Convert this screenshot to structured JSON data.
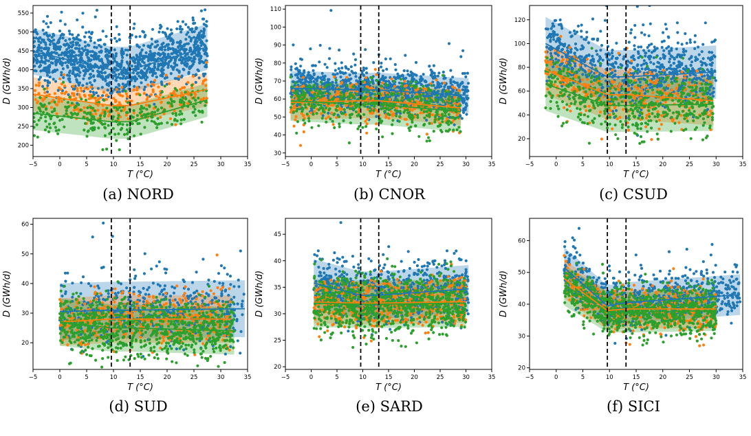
{
  "figure": {
    "colors": {
      "series_a": "#1f77b4",
      "series_b": "#ff7f0e",
      "series_c": "#2ca02c",
      "threshold": "#000000"
    },
    "captions": [
      "(a) NORD",
      "(b) CNOR",
      "(c) CSUD",
      "(d) SUD",
      "(e) SARD",
      "(f) SICI"
    ]
  },
  "chart_data": [
    {
      "type": "scatter",
      "caption": "(a) NORD",
      "xlabel": "T (°C)",
      "ylabel": "D (GWh/d)",
      "xlim": [
        -5,
        35
      ],
      "ylim": [
        170,
        570
      ],
      "xticks": [
        -5,
        0,
        5,
        10,
        15,
        20,
        25,
        30,
        35
      ],
      "yticks": [
        200,
        250,
        300,
        350,
        400,
        450,
        500,
        550
      ],
      "thresholds": [
        9.6,
        13.1
      ],
      "x_range": [
        -5,
        27.5
      ],
      "series": [
        {
          "color_key": "series_a",
          "n": 1200,
          "line": [
            [
              -5,
              448
            ],
            [
              9.6,
              400
            ],
            [
              13.1,
              400
            ],
            [
              27.5,
              460
            ]
          ],
          "spread": 38
        },
        {
          "color_key": "series_b",
          "n": 260,
          "line": [
            [
              -5,
              335
            ],
            [
              9.6,
              305
            ],
            [
              13.1,
              305
            ],
            [
              27.5,
              348
            ]
          ],
          "spread": 28
        },
        {
          "color_key": "series_c",
          "n": 300,
          "line": [
            [
              -5,
              285
            ],
            [
              9.6,
              262
            ],
            [
              13.1,
              262
            ],
            [
              27.5,
              320
            ]
          ],
          "spread": 28
        }
      ]
    },
    {
      "type": "scatter",
      "caption": "(b) CNOR",
      "xlabel": "T (°C)",
      "ylabel": "D (GWh/d)",
      "xlim": [
        -5,
        35
      ],
      "ylim": [
        28,
        112
      ],
      "xticks": [
        -5,
        0,
        5,
        10,
        15,
        20,
        25,
        30,
        35
      ],
      "yticks": [
        30,
        40,
        50,
        60,
        70,
        80,
        90,
        100,
        110
      ],
      "thresholds": [
        9.6,
        13.1
      ],
      "x_range": [
        -4,
        30.5
      ],
      "series": [
        {
          "color_key": "series_a",
          "n": 1000,
          "line": [
            [
              -4,
              66
            ],
            [
              9.6,
              65
            ],
            [
              13.1,
              65
            ],
            [
              30.5,
              62
            ]
          ],
          "spread": 6
        },
        {
          "color_key": "series_b",
          "n": 350,
          "line": [
            [
              -4,
              58
            ],
            [
              9.6,
              59
            ],
            [
              13.1,
              59
            ],
            [
              29,
              55
            ]
          ],
          "spread": 6
        },
        {
          "color_key": "series_c",
          "n": 450,
          "line": [
            [
              -4,
              59
            ],
            [
              9.6,
              57
            ],
            [
              13.1,
              57
            ],
            [
              29,
              53
            ]
          ],
          "spread": 7
        }
      ]
    },
    {
      "type": "scatter",
      "caption": "(c) CSUD",
      "xlabel": "T (°C)",
      "ylabel": "D (GWh/d)",
      "xlim": [
        -5,
        35
      ],
      "ylim": [
        5,
        132
      ],
      "xticks": [
        -5,
        0,
        5,
        10,
        15,
        20,
        25,
        30,
        35
      ],
      "yticks": [
        20,
        40,
        60,
        80,
        100,
        120
      ],
      "thresholds": [
        9.6,
        13.1
      ],
      "x_range": [
        -2,
        30
      ],
      "series": [
        {
          "color_key": "series_a",
          "n": 800,
          "line": [
            [
              -2,
              100
            ],
            [
              9.6,
              72
            ],
            [
              13.1,
              72
            ],
            [
              30,
              76
            ]
          ],
          "spread": 14
        },
        {
          "color_key": "series_b",
          "n": 350,
          "line": [
            [
              -2,
              78
            ],
            [
              9.6,
              57
            ],
            [
              13.1,
              57
            ],
            [
              29.5,
              52
            ]
          ],
          "spread": 13
        },
        {
          "color_key": "series_c",
          "n": 500,
          "line": [
            [
              -2,
              66
            ],
            [
              9.6,
              48
            ],
            [
              13.1,
              48
            ],
            [
              29.5,
              49
            ]
          ],
          "spread": 14
        }
      ]
    },
    {
      "type": "scatter",
      "caption": "(d) SUD",
      "xlabel": "T (°C)",
      "ylabel": "D (GWh/d)",
      "xlim": [
        -5,
        35
      ],
      "ylim": [
        11,
        62
      ],
      "xticks": [
        -5,
        0,
        5,
        10,
        15,
        20,
        25,
        30,
        35
      ],
      "yticks": [
        20,
        30,
        40,
        50,
        60
      ],
      "thresholds": [
        9.6,
        13.1
      ],
      "x_range": [
        0,
        34.5
      ],
      "series": [
        {
          "color_key": "series_a",
          "n": 500,
          "line": [
            [
              0,
              30.5
            ],
            [
              9.6,
              31
            ],
            [
              13.1,
              31
            ],
            [
              34.5,
              31.5
            ]
          ],
          "spread": 6
        },
        {
          "color_key": "series_b",
          "n": 400,
          "line": [
            [
              0,
              27
            ],
            [
              9.6,
              28
            ],
            [
              13.1,
              28
            ],
            [
              32,
              28
            ]
          ],
          "spread": 5
        },
        {
          "color_key": "series_c",
          "n": 800,
          "line": [
            [
              0,
              27
            ],
            [
              9.6,
              25
            ],
            [
              13.1,
              25
            ],
            [
              32.5,
              24
            ]
          ],
          "spread": 5
        }
      ]
    },
    {
      "type": "scatter",
      "caption": "(e) SARD",
      "xlabel": "T (°C)",
      "ylabel": "D (GWh/d)",
      "xlim": [
        -5,
        35
      ],
      "ylim": [
        19.5,
        48
      ],
      "xticks": [
        -5,
        0,
        5,
        10,
        15,
        20,
        25,
        30,
        35
      ],
      "yticks": [
        20,
        25,
        30,
        35,
        40,
        45
      ],
      "thresholds": [
        9.6,
        13.1
      ],
      "x_range": [
        0.5,
        30.5
      ],
      "series": [
        {
          "color_key": "series_a",
          "n": 700,
          "line": [
            [
              0.5,
              35.8
            ],
            [
              9.6,
              33.5
            ],
            [
              13.1,
              33.5
            ],
            [
              30.5,
              34.7
            ]
          ],
          "spread": 2.8
        },
        {
          "color_key": "series_b",
          "n": 500,
          "line": [
            [
              0.5,
              32.2
            ],
            [
              9.6,
              32
            ],
            [
              13.1,
              32
            ],
            [
              30,
              32.3
            ]
          ],
          "spread": 2.5
        },
        {
          "color_key": "series_c",
          "n": 800,
          "line": [
            [
              0.5,
              32
            ],
            [
              9.6,
              31.8
            ],
            [
              13.1,
              31.8
            ],
            [
              30,
              32
            ]
          ],
          "spread": 2.8
        }
      ]
    },
    {
      "type": "scatter",
      "caption": "(f) SICI",
      "xlabel": "T (°C)",
      "ylabel": "D (GWh/d)",
      "xlim": [
        -5,
        35
      ],
      "ylim": [
        19.5,
        67
      ],
      "xticks": [
        -5,
        0,
        5,
        10,
        15,
        20,
        25,
        30,
        35
      ],
      "yticks": [
        20,
        30,
        40,
        50,
        60
      ],
      "thresholds": [
        9.6,
        13.1
      ],
      "x_range": [
        1.5,
        34.5
      ],
      "series": [
        {
          "color_key": "series_a",
          "n": 650,
          "line": [
            [
              1.5,
              51.5
            ],
            [
              9.6,
              39.5
            ],
            [
              13.1,
              40.5
            ],
            [
              34.5,
              43
            ]
          ],
          "spread": 4
        },
        {
          "color_key": "series_b",
          "n": 400,
          "line": [
            [
              1.5,
              48
            ],
            [
              9.6,
              38
            ],
            [
              13.1,
              38.5
            ],
            [
              30,
              38.5
            ]
          ],
          "spread": 3.8
        },
        {
          "color_key": "series_c",
          "n": 800,
          "line": [
            [
              1.5,
              46
            ],
            [
              9.6,
              37.5
            ],
            [
              13.1,
              37.5
            ],
            [
              30,
              38
            ]
          ],
          "spread": 4
        }
      ]
    }
  ]
}
